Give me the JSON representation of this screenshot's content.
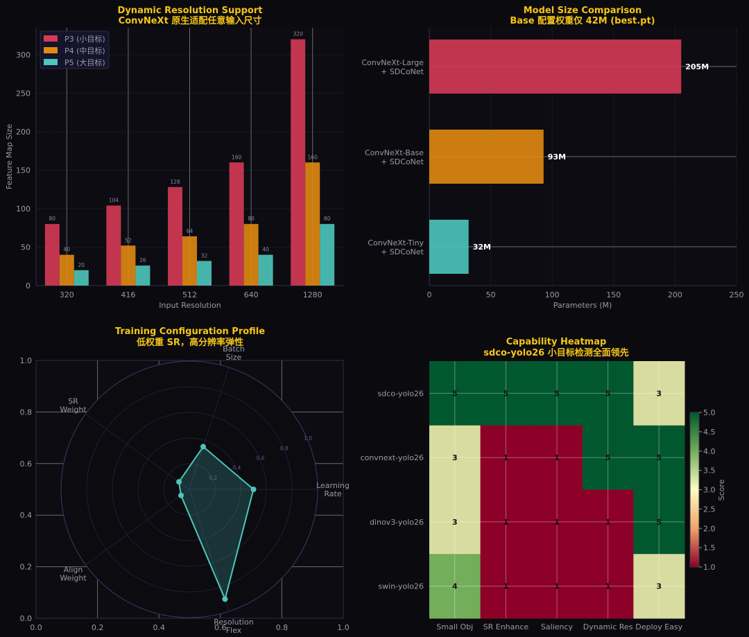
{
  "colors": {
    "bg": "#0b0b0f",
    "title": "#f5c518",
    "p3": "#d63a55",
    "p4": "#e08a12",
    "p5": "#4ec6bd",
    "radar": "#4ec6bd"
  },
  "chart_data": [
    {
      "type": "bar",
      "title": "Dynamic Resolution Support",
      "subtitle": "ConvNeXt 原生适配任意输入尺寸",
      "xlabel": "Input Resolution",
      "ylabel": "Feature Map Size",
      "ylim": [
        0,
        335
      ],
      "yticks": [
        0,
        50,
        100,
        150,
        200,
        250,
        300
      ],
      "categories": [
        "320",
        "416",
        "512",
        "640",
        "1280"
      ],
      "legend_position": "top-left",
      "series": [
        {
          "name": "P3 (小目标)",
          "color": "#d63a55",
          "values": [
            80,
            104,
            128,
            160,
            320
          ]
        },
        {
          "name": "P4 (中目标)",
          "color": "#e08a12",
          "values": [
            40,
            52,
            64,
            80,
            160
          ]
        },
        {
          "name": "P5 (大目标)",
          "color": "#4ec6bd",
          "values": [
            20,
            26,
            32,
            40,
            80
          ]
        }
      ]
    },
    {
      "type": "bar",
      "orientation": "horizontal",
      "title": "Model Size Comparison",
      "subtitle": "Base 配置权重仅 42M (best.pt)",
      "xlabel": "Parameters (M)",
      "xlim": [
        0,
        250
      ],
      "xticks": [
        0,
        50,
        100,
        150,
        200,
        250
      ],
      "categories": [
        {
          "line1": "ConvNeXt-Large",
          "line2": "+ SDCoNet",
          "value": 205,
          "label": "205M",
          "color": "#d63a55"
        },
        {
          "line1": "ConvNeXt-Base",
          "line2": "+ SDCoNet",
          "value": 93,
          "label": "93M",
          "color": "#e08a12"
        },
        {
          "line1": "ConvNeXt-Tiny",
          "line2": "+ SDCoNet",
          "value": 32,
          "label": "32M",
          "color": "#4ec6bd"
        }
      ]
    },
    {
      "type": "radar",
      "title": "Training Configuration Profile",
      "subtitle": "低权重 SR，高分辨率弹性",
      "axes": [
        {
          "line1": "Learning",
          "line2": "Rate",
          "value": 0.5
        },
        {
          "line1": "Batch",
          "line2": "Size",
          "value": 0.35
        },
        {
          "line1": "SR",
          "line2": "Weight",
          "value": 0.1
        },
        {
          "line1": "Align",
          "line2": "Weight",
          "value": 0.08
        },
        {
          "line1": "Resolution",
          "line2": "Flex",
          "value": 0.9
        }
      ],
      "rticks": [
        "0.2",
        "0.4",
        "0.6",
        "0.8",
        "1.0"
      ],
      "xticks": [
        "0.0",
        "0.2",
        "0.4",
        "0.6",
        "0.8",
        "1.0"
      ],
      "yticks": [
        "0.0",
        "0.2",
        "0.4",
        "0.6",
        "0.8",
        "1.0"
      ]
    },
    {
      "type": "heatmap",
      "title": "Capability Heatmap",
      "subtitle": "sdco-yolo26 小目标检测全面领先",
      "columns": [
        "Small Obj",
        "SR Enhance",
        "Saliency",
        "Dynamic Res",
        "Deploy Easy"
      ],
      "rows": [
        "sdco-yolo26",
        "convnext-yolo26",
        "dinov3-yolo26",
        "swin-yolo26"
      ],
      "values": [
        [
          5,
          5,
          5,
          5,
          3
        ],
        [
          3,
          1,
          1,
          5,
          5
        ],
        [
          3,
          1,
          1,
          1,
          5
        ],
        [
          4,
          1,
          1,
          1,
          3
        ]
      ],
      "colorbar_label": "Score",
      "colorbar_ticks": [
        "1.0",
        "1.5",
        "2.0",
        "2.5",
        "3.0",
        "3.5",
        "4.0",
        "4.5",
        "5.0"
      ]
    }
  ]
}
